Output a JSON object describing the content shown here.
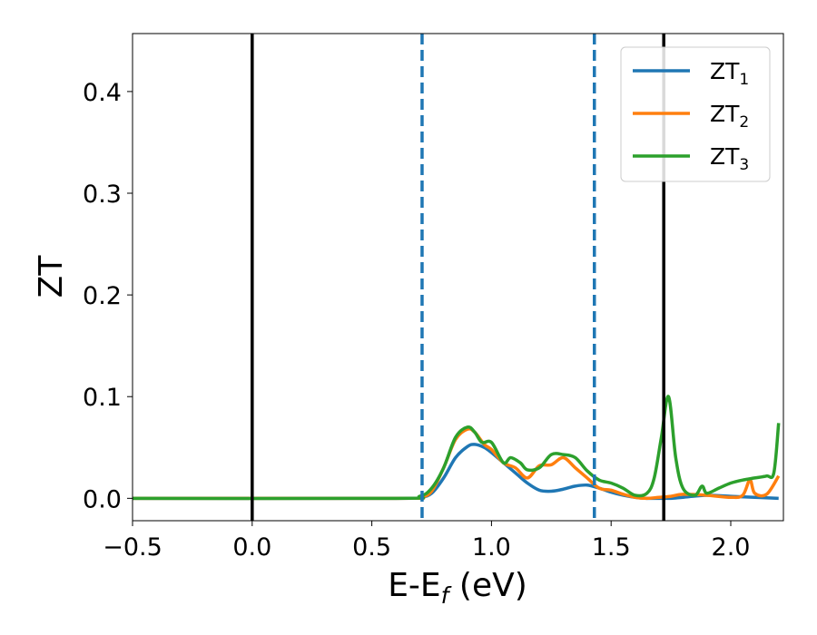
{
  "chart_data": {
    "type": "line",
    "xlabel": "E-E",
    "xlabel_sub": "f",
    "xlabel_unit": " (eV)",
    "ylabel": "ZT",
    "xlim": [
      -0.5,
      2.22
    ],
    "ylim": [
      -0.022,
      0.457
    ],
    "xticks": [
      -0.5,
      0.0,
      0.5,
      1.0,
      1.5,
      2.0
    ],
    "xtick_labels": [
      "−0.5",
      "0.0",
      "0.5",
      "1.0",
      "1.5",
      "2.0"
    ],
    "yticks": [
      0.0,
      0.1,
      0.2,
      0.3,
      0.4
    ],
    "ytick_labels": [
      "0.0",
      "0.1",
      "0.2",
      "0.3",
      "0.4"
    ],
    "grid": false,
    "legend_position": "top-right",
    "vlines": [
      {
        "x": 0.0,
        "style": "solid",
        "color": "#000000"
      },
      {
        "x": 1.72,
        "style": "solid",
        "color": "#000000"
      },
      {
        "x": 0.71,
        "style": "dashed",
        "color": "#1f77b4"
      },
      {
        "x": 1.43,
        "style": "dashed",
        "color": "#1f77b4"
      }
    ],
    "series": [
      {
        "name": "ZT",
        "sub": "1",
        "color": "#1f77b4",
        "x": [
          -0.5,
          0.6,
          0.7,
          0.75,
          0.8,
          0.85,
          0.9,
          0.93,
          0.97,
          1.0,
          1.05,
          1.1,
          1.15,
          1.2,
          1.25,
          1.3,
          1.35,
          1.4,
          1.45,
          1.5,
          1.55,
          1.6,
          1.65,
          1.7,
          1.75,
          1.8,
          1.9,
          2.0,
          2.1,
          2.2
        ],
        "y": [
          0.0,
          0.0,
          0.001,
          0.005,
          0.02,
          0.04,
          0.051,
          0.053,
          0.05,
          0.045,
          0.035,
          0.025,
          0.015,
          0.008,
          0.007,
          0.009,
          0.012,
          0.013,
          0.01,
          0.006,
          0.003,
          0.001,
          0.0,
          0.0,
          0.0,
          0.001,
          0.003,
          0.002,
          0.001,
          0.0
        ]
      },
      {
        "name": "ZT",
        "sub": "2",
        "color": "#ff7f0e",
        "x": [
          -0.5,
          0.6,
          0.7,
          0.75,
          0.8,
          0.85,
          0.9,
          0.93,
          0.97,
          1.0,
          1.05,
          1.1,
          1.15,
          1.2,
          1.25,
          1.3,
          1.35,
          1.4,
          1.45,
          1.5,
          1.55,
          1.6,
          1.65,
          1.7,
          1.75,
          1.8,
          1.9,
          2.0,
          2.05,
          2.08,
          2.1,
          2.15,
          2.2
        ],
        "y": [
          0.0,
          0.0,
          0.001,
          0.007,
          0.03,
          0.058,
          0.068,
          0.065,
          0.053,
          0.048,
          0.035,
          0.03,
          0.02,
          0.032,
          0.033,
          0.04,
          0.03,
          0.02,
          0.01,
          0.008,
          0.004,
          0.001,
          0.0,
          0.001,
          0.002,
          0.004,
          0.003,
          0.001,
          0.003,
          0.018,
          0.005,
          0.004,
          0.022
        ]
      },
      {
        "name": "ZT",
        "sub": "3",
        "color": "#2ca02c",
        "x": [
          -0.5,
          0.6,
          0.7,
          0.75,
          0.8,
          0.85,
          0.9,
          0.93,
          0.96,
          1.0,
          1.05,
          1.08,
          1.12,
          1.15,
          1.2,
          1.25,
          1.3,
          1.35,
          1.4,
          1.45,
          1.5,
          1.55,
          1.6,
          1.65,
          1.68,
          1.71,
          1.74,
          1.77,
          1.8,
          1.85,
          1.88,
          1.9,
          1.95,
          2.0,
          2.05,
          2.1,
          2.15,
          2.18,
          2.2
        ],
        "y": [
          0.0,
          0.0,
          0.002,
          0.01,
          0.03,
          0.06,
          0.07,
          0.065,
          0.055,
          0.055,
          0.035,
          0.04,
          0.035,
          0.028,
          0.03,
          0.043,
          0.043,
          0.04,
          0.027,
          0.018,
          0.015,
          0.01,
          0.003,
          0.005,
          0.02,
          0.06,
          0.1,
          0.04,
          0.01,
          0.003,
          0.012,
          0.005,
          0.01,
          0.015,
          0.018,
          0.02,
          0.022,
          0.025,
          0.074
        ]
      }
    ]
  }
}
